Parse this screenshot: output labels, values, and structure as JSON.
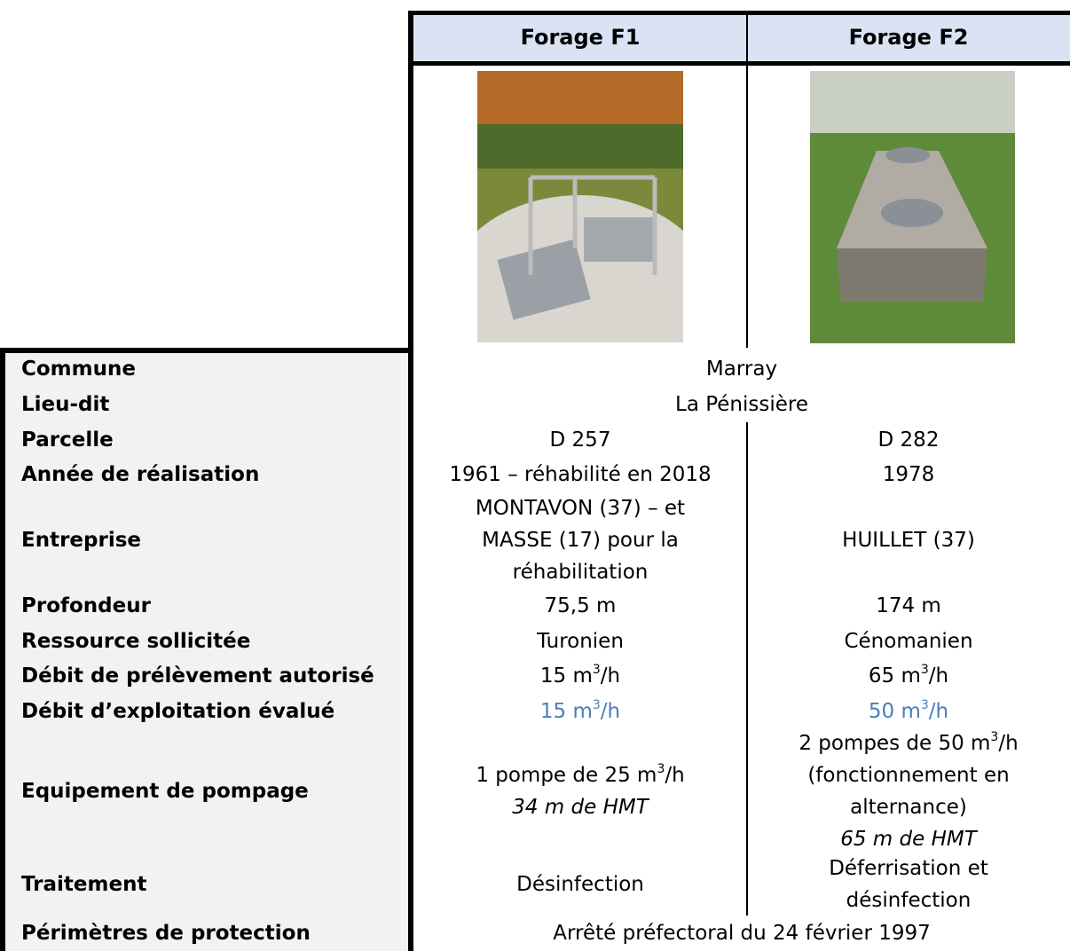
{
  "header": {
    "f1": "Forage F1",
    "f2": "Forage F2"
  },
  "rows": [
    {
      "label": "Commune",
      "all": [
        "Marray"
      ]
    },
    {
      "label": "Lieu-dit",
      "all": [
        "La Pénissière"
      ]
    },
    {
      "label": "Parcelle",
      "f1": [
        "D 257"
      ],
      "f2": [
        "D 282"
      ]
    },
    {
      "label": "Année de réalisation",
      "f1": [
        "1961 – réhabilité en 2018"
      ],
      "f2": [
        "1978"
      ]
    },
    {
      "label": "Entreprise",
      "f1": [
        "MONTAVON (37) – et",
        "MASSE (17) pour la",
        "réhabilitation"
      ],
      "f2": [
        "HUILLET (37)"
      ]
    },
    {
      "label": "Profondeur",
      "f1": [
        "75,5 m"
      ],
      "f2": [
        "174 m"
      ]
    },
    {
      "label": "Ressource sollicitée",
      "f1": [
        "Turonien"
      ],
      "f2": [
        "Cénomanien"
      ]
    },
    {
      "label": "Débit de prélèvement autorisé",
      "f1": [
        [
          "15 m",
          "3",
          "/h"
        ]
      ],
      "f2": [
        [
          "65 m",
          "3",
          "/h"
        ]
      ]
    },
    {
      "label": "Débit d’exploitation évalué",
      "color": "#4a7ebb",
      "f1": [
        [
          "15 m",
          "3",
          "/h"
        ]
      ],
      "f2": [
        [
          "50 m",
          "3",
          "/h"
        ]
      ]
    },
    {
      "label": "Equipement de pompage",
      "f1": [
        [
          "1 pompe de 25 m",
          "3",
          "/h"
        ],
        {
          "text": "34 m de HMT",
          "italic": true
        }
      ],
      "f2": [
        [
          "2 pompes de 50 m",
          "3",
          "/h"
        ],
        "(fonctionnement en",
        "alternance)",
        {
          "text": "65 m de HMT",
          "italic": true
        }
      ]
    },
    {
      "label": "Traitement",
      "f1": [
        "Désinfection"
      ],
      "f2": [
        "Déferrisation et",
        "désinfection"
      ]
    },
    {
      "label": "Périmètres de protection",
      "all": [
        "Arrêté préfectoral du 24 février 1997"
      ]
    }
  ]
}
